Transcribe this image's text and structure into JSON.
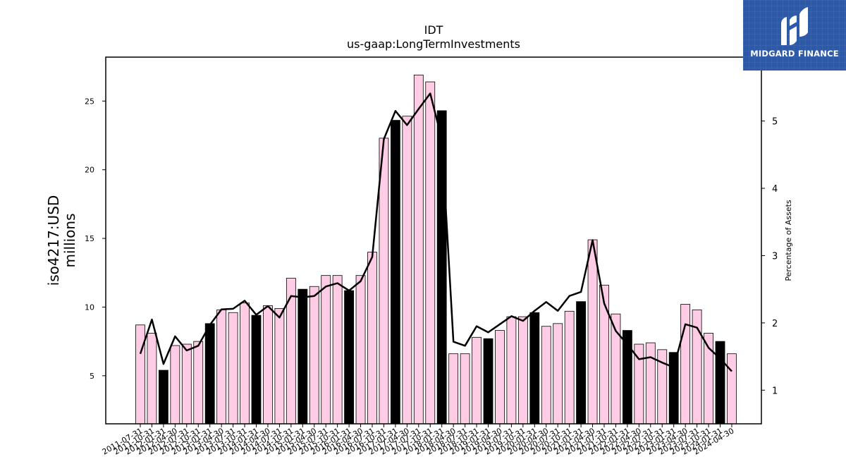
{
  "chart_data": {
    "type": "bar",
    "title": "IDT",
    "subtitle": "us-gaap:LongTermInvestments",
    "ylabel": "iso4217:USD\nmillions",
    "y2label": "Percentage of Assets",
    "ylim": [
      1.5,
      28.2
    ],
    "y2lim": [
      0.5,
      5.95
    ],
    "yticks": [
      5,
      10,
      15,
      20,
      25
    ],
    "y2ticks": [
      1,
      2,
      3,
      4,
      5
    ],
    "grid": false,
    "categories": [
      "2011-07-31",
      "2011-10-31",
      "2012-01-31",
      "2012-04-30",
      "2012-07-31",
      "2012-10-31",
      "2013-01-31",
      "2013-04-30",
      "2013-07-31",
      "2013-10-31",
      "2014-01-31",
      "2014-04-30",
      "2014-07-31",
      "2014-10-31",
      "2015-01-31",
      "2015-04-30",
      "2015-07-31",
      "2015-10-31",
      "2016-01-31",
      "2016-04-30",
      "2016-07-31",
      "2016-10-31",
      "2017-01-31",
      "2017-04-30",
      "2017-07-31",
      "2017-10-31",
      "2018-01-31",
      "2018-04-30",
      "2018-07-31",
      "2018-10-31",
      "2019-01-31",
      "2019-04-30",
      "2019-07-31",
      "2019-10-31",
      "2020-01-31",
      "2020-04-30",
      "2020-07-31",
      "2020-10-31",
      "2021-01-31",
      "2021-04-30",
      "2021-07-31",
      "2021-10-31",
      "2022-01-31",
      "2022-04-30",
      "2022-07-31",
      "2022-10-31",
      "2023-01-31",
      "2023-04-30",
      "2023-07-31",
      "2023-10-31",
      "2024-01-31",
      "2024-04-30"
    ],
    "series": [
      {
        "axis": "left",
        "kind": "bar",
        "values": [
          8.7,
          8.1,
          5.4,
          7.2,
          7.3,
          7.5,
          8.8,
          9.8,
          9.6,
          10.3,
          9.4,
          10.1,
          9.9,
          12.1,
          11.3,
          11.5,
          12.3,
          12.3,
          11.2,
          12.3,
          14.0,
          22.3,
          23.6,
          23.9,
          26.9,
          26.4,
          24.3,
          6.6,
          6.6,
          7.8,
          7.7,
          8.3,
          9.3,
          9.3,
          9.6,
          8.6,
          8.8,
          9.7,
          10.4,
          14.9,
          11.6,
          9.5,
          8.3,
          7.3,
          7.4,
          6.9,
          6.7,
          10.2,
          9.8,
          8.1,
          7.5,
          6.6
        ],
        "highlight": [
          false,
          false,
          true,
          false,
          false,
          false,
          true,
          false,
          false,
          false,
          true,
          false,
          false,
          false,
          true,
          false,
          false,
          false,
          true,
          false,
          false,
          false,
          true,
          false,
          false,
          false,
          true,
          false,
          false,
          false,
          true,
          false,
          false,
          false,
          true,
          false,
          false,
          false,
          true,
          false,
          false,
          false,
          true,
          false,
          false,
          false,
          true,
          false,
          false,
          false,
          true,
          false
        ]
      },
      {
        "axis": "right",
        "kind": "line",
        "values": [
          1.54,
          2.05,
          1.39,
          1.8,
          1.59,
          1.66,
          1.97,
          2.2,
          2.21,
          2.33,
          2.12,
          2.25,
          2.08,
          2.4,
          2.38,
          2.4,
          2.54,
          2.59,
          2.48,
          2.62,
          2.98,
          4.73,
          5.15,
          4.94,
          5.18,
          5.41,
          4.73,
          1.72,
          1.66,
          1.95,
          1.86,
          1.98,
          2.1,
          2.03,
          2.18,
          2.31,
          2.18,
          2.4,
          2.46,
          3.23,
          2.29,
          1.88,
          1.68,
          1.46,
          1.49,
          1.41,
          1.34,
          1.98,
          1.93,
          1.63,
          1.47,
          1.28
        ]
      }
    ],
    "colors": {
      "bar_fill": "#ffcce6",
      "bar_highlight": "#000000",
      "bar_edge": "#000000",
      "line": "#000000"
    }
  },
  "logo": {
    "text": "MIDGARD FINANCE",
    "background": "#2d5aa8"
  }
}
